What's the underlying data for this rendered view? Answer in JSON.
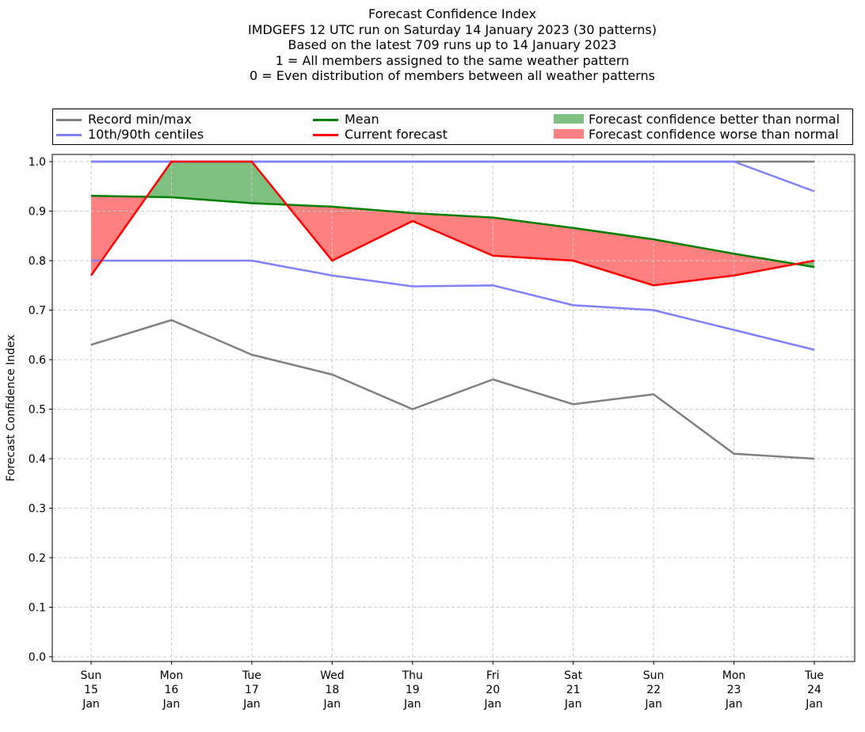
{
  "chart_data": {
    "type": "line",
    "title_lines": [
      "Forecast Confidence Index",
      "IMDGEFS 12 UTC run on Saturday 14 January 2023 (30 patterns)",
      "Based on the latest 709 runs up to 14 January 2023",
      "1 = All members assigned to the same weather pattern",
      "0 = Even distribution of members between all weather patterns"
    ],
    "ylabel": "Forecast Confidence Index",
    "xlabel": "",
    "ylim": [
      0.0,
      1.0
    ],
    "yticks": [
      "0.0",
      "0.1",
      "0.2",
      "0.3",
      "0.4",
      "0.5",
      "0.6",
      "0.7",
      "0.8",
      "0.9",
      "1.0"
    ],
    "categories": [
      [
        "Sun",
        "15",
        "Jan"
      ],
      [
        "Mon",
        "16",
        "Jan"
      ],
      [
        "Tue",
        "17",
        "Jan"
      ],
      [
        "Wed",
        "18",
        "Jan"
      ],
      [
        "Thu",
        "19",
        "Jan"
      ],
      [
        "Fri",
        "20",
        "Jan"
      ],
      [
        "Sat",
        "21",
        "Jan"
      ],
      [
        "Sun",
        "22",
        "Jan"
      ],
      [
        "Mon",
        "23",
        "Jan"
      ],
      [
        "Tue",
        "24",
        "Jan"
      ]
    ],
    "grid": true,
    "legend_position": "top (above plot, 3 columns)",
    "series": [
      {
        "name": "Record min/max",
        "role": "record-min",
        "color": "#808080",
        "values": [
          0.63,
          0.68,
          0.61,
          0.57,
          0.5,
          0.56,
          0.51,
          0.53,
          0.41,
          0.4
        ]
      },
      {
        "role": "record-max",
        "color": "#808080",
        "values": [
          1.0,
          1.0,
          1.0,
          1.0,
          1.0,
          1.0,
          1.0,
          1.0,
          1.0,
          1.0
        ]
      },
      {
        "name": "10th/90th centiles",
        "role": "p10",
        "color": "#8080ff",
        "values": [
          0.8,
          0.8,
          0.8,
          0.77,
          0.748,
          0.75,
          0.71,
          0.7,
          0.66,
          0.62
        ]
      },
      {
        "role": "p90",
        "color": "#8080ff",
        "values": [
          1.0,
          1.0,
          1.0,
          1.0,
          1.0,
          1.0,
          1.0,
          1.0,
          1.0,
          0.94
        ]
      },
      {
        "name": "Mean",
        "role": "mean",
        "color": "#008000",
        "values": [
          0.931,
          0.928,
          0.916,
          0.909,
          0.896,
          0.887,
          0.866,
          0.843,
          0.814,
          0.787
        ]
      },
      {
        "name": "Current forecast",
        "role": "current",
        "color": "#ff0000",
        "values": [
          0.77,
          1.0,
          1.0,
          0.8,
          0.88,
          0.81,
          0.8,
          0.75,
          0.77,
          0.8
        ]
      }
    ],
    "fills": [
      {
        "name": "Forecast confidence better than normal",
        "color": "#7fbf7f"
      },
      {
        "name": "Forecast confidence worse than normal",
        "color": "#ff8080"
      }
    ]
  }
}
